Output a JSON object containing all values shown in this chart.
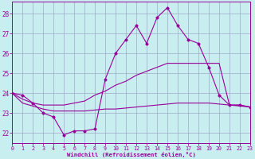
{
  "xlabel": "Windchill (Refroidissement éolien,°C)",
  "background_color": "#c8eef0",
  "grid_color": "#a0a8cc",
  "line_color": "#990099",
  "xlim": [
    0,
    23
  ],
  "ylim": [
    21.5,
    28.6
  ],
  "yticks": [
    22,
    23,
    24,
    25,
    26,
    27,
    28
  ],
  "xticks": [
    0,
    1,
    2,
    3,
    4,
    5,
    6,
    7,
    8,
    9,
    10,
    11,
    12,
    13,
    14,
    15,
    16,
    17,
    18,
    19,
    20,
    21,
    22,
    23
  ],
  "s1": [
    24.0,
    23.9,
    23.5,
    23.0,
    22.8,
    21.9,
    22.1,
    22.1,
    22.2,
    24.7,
    26.0,
    26.7,
    27.4,
    26.5,
    27.8,
    28.3,
    27.4,
    26.7,
    26.5,
    25.3,
    23.9,
    23.4,
    23.4,
    23.3
  ],
  "s2": [
    24.0,
    23.7,
    23.5,
    23.4,
    23.4,
    23.4,
    23.5,
    23.6,
    23.9,
    24.1,
    24.4,
    24.6,
    24.9,
    25.1,
    25.3,
    25.5,
    25.5,
    25.5,
    25.5,
    25.5,
    25.5,
    23.4,
    23.4,
    23.3
  ],
  "s3": [
    24.0,
    23.5,
    23.35,
    23.2,
    23.1,
    23.1,
    23.1,
    23.1,
    23.15,
    23.2,
    23.2,
    23.25,
    23.3,
    23.35,
    23.4,
    23.45,
    23.5,
    23.5,
    23.5,
    23.5,
    23.45,
    23.4,
    23.35,
    23.3
  ]
}
